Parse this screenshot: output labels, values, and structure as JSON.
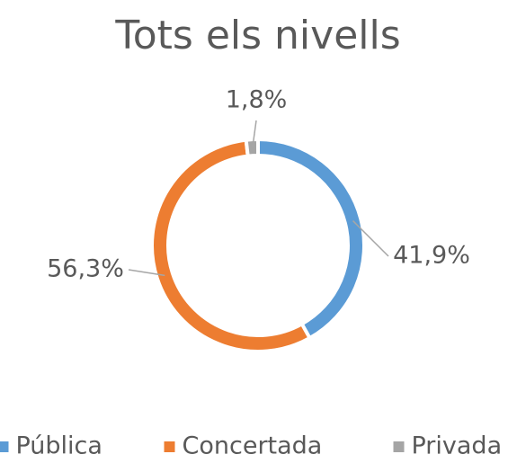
{
  "chart_data": {
    "type": "donut",
    "title": "Tots els nivells",
    "categories": [
      "Pública",
      "Concertada",
      "Privada"
    ],
    "values": [
      41.9,
      56.3,
      1.8
    ],
    "value_labels": [
      "41,9%",
      "56,3%",
      "1,8%"
    ],
    "colors": [
      "#5b9bd5",
      "#ed7d31",
      "#a5a5a5"
    ],
    "legend": "bottom"
  }
}
